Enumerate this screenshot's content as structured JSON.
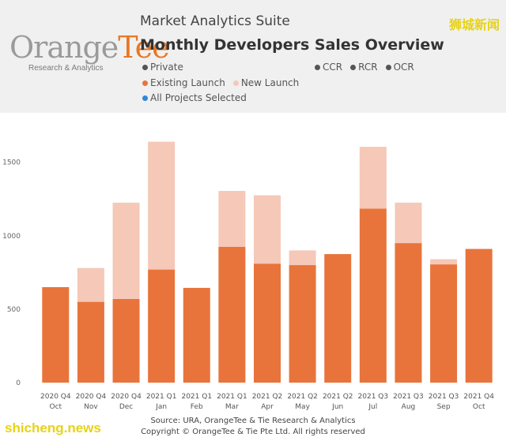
{
  "header": {
    "logo_brand_main": "Orange",
    "logo_brand_accent": "Tee",
    "logo_subtitle": "Research & Analytics",
    "suite_title": "Market Analytics Suite",
    "report_title": "Monthly Developers Sales Overview"
  },
  "legend": {
    "market_segment": {
      "label": "Private",
      "color": "#555555"
    },
    "regions": [
      {
        "label": "CCR",
        "color": "#555555"
      },
      {
        "label": "RCR",
        "color": "#555555"
      },
      {
        "label": "OCR",
        "color": "#555555"
      }
    ],
    "launch_types": [
      {
        "label": "Existing Launch",
        "color": "#e8743b"
      },
      {
        "label": "New Launch",
        "color": "#f5c8b8"
      }
    ],
    "selection": {
      "label": "All Projects Selected",
      "color": "#2e86de"
    }
  },
  "watermark": {
    "cn": "狮城新闻",
    "en": "shicheng.news"
  },
  "footer": {
    "source": "Source: URA, OrangeTee & Tie Research & Analytics",
    "copyright": "Copyright © OrangeTee & Tie Pte Ltd. All rights reserved"
  },
  "chart_data": {
    "type": "bar",
    "stacked": true,
    "title": "Monthly Developers Sales Overview",
    "xlabel": "",
    "ylabel": "",
    "ylim": [
      0,
      1750
    ],
    "yticks": [
      0,
      500,
      1000,
      1500
    ],
    "grid": false,
    "categories": [
      "Oct",
      "Nov",
      "Dec",
      "Jan",
      "Feb",
      "Mar",
      "Apr",
      "May",
      "Jun",
      "Jul",
      "Aug",
      "Sep",
      "Oct"
    ],
    "category_quarters": [
      "2020 Q4",
      "2020 Q4",
      "2020 Q4",
      "2021 Q1",
      "2021 Q1",
      "2021 Q1",
      "2021 Q2",
      "2021 Q2",
      "2021 Q2",
      "2021 Q3",
      "2021 Q3",
      "2021 Q3",
      "2021 Q4"
    ],
    "series": [
      {
        "name": "Existing Launch",
        "color": "#e8743b",
        "values": [
          650,
          550,
          570,
          770,
          645,
          925,
          810,
          800,
          875,
          1185,
          950,
          805,
          910
        ]
      },
      {
        "name": "New Launch",
        "color": "#f5c8b8",
        "values": [
          0,
          230,
          655,
          870,
          0,
          380,
          465,
          100,
          0,
          420,
          275,
          35,
          0
        ]
      }
    ]
  }
}
